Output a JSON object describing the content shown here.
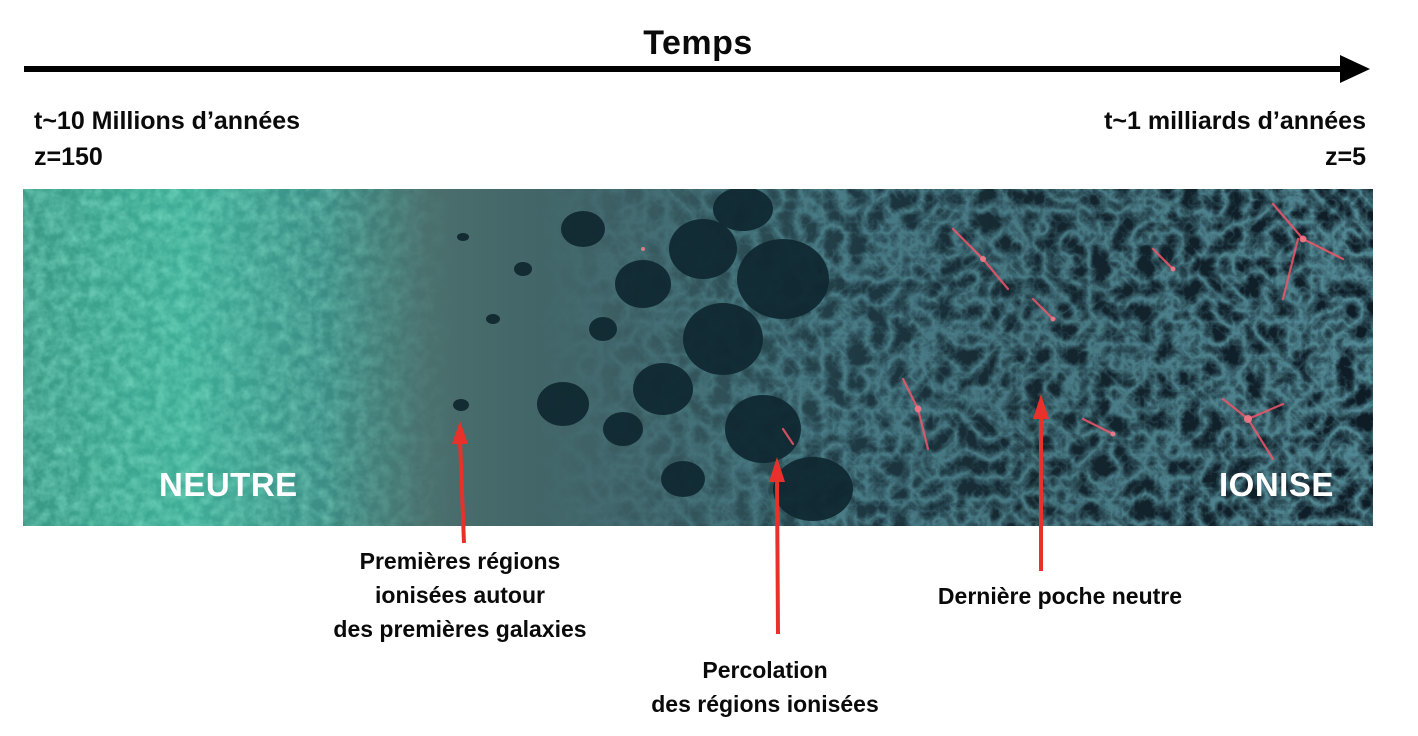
{
  "header": {
    "title": "Temps"
  },
  "timeline": {
    "start": {
      "time": "t~10 Millions d’années",
      "redshift": "z=150"
    },
    "end": {
      "time": "t~1 milliards d’années",
      "redshift": "z=5"
    }
  },
  "simulation": {
    "left_label": "NEUTRE",
    "right_label": "IONISE"
  },
  "annotations": [
    {
      "lines": [
        "Premières régions",
        "ionisées autour",
        "des premières galaxies"
      ]
    },
    {
      "lines": [
        "Percolation",
        "des régions ionisées"
      ]
    },
    {
      "lines": [
        "Dernière poche neutre"
      ]
    }
  ],
  "colors": {
    "arrow": "#e8312a",
    "axis": "#000000",
    "neutral_gas": "#3fb59a",
    "ionised_web": "#1b5c6e",
    "hot_filaments": "#f0566a"
  }
}
